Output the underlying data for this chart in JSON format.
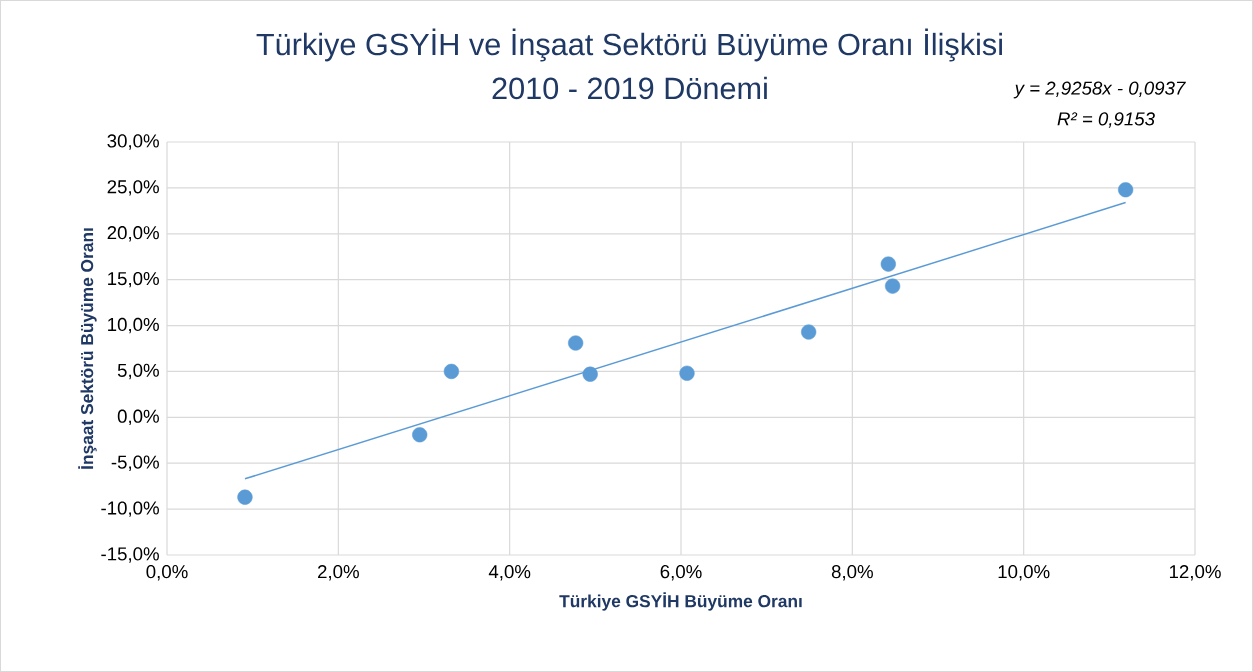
{
  "chart_data": {
    "type": "scatter",
    "title": "Türkiye GSYİH ve İnşaat Sektörü Büyüme Oranı İlişkisi",
    "subtitle": "2010 - 2019 Dönemi",
    "xlabel": "Türkiye GSYİH Büyüme Oranı",
    "ylabel": "İnşaat Sektörü Büyüme Oranı",
    "annotations": [
      "y = 2,9258x - 0,0937",
      "R² = 0,9153"
    ],
    "series": [
      {
        "color": "#5b9bd5",
        "marker": "circle",
        "x": [
          0.91,
          2.95,
          3.32,
          4.77,
          4.94,
          6.07,
          7.49,
          8.42,
          8.47,
          11.19
        ],
        "values": [
          -8.7,
          -1.9,
          5.0,
          8.1,
          4.7,
          4.8,
          9.3,
          16.7,
          14.3,
          24.8
        ]
      },
      {
        "type": "line",
        "color": "#5b9bd5",
        "marker": "none",
        "line_style": "solid",
        "x": [
          0.91,
          11.19
        ],
        "values": [
          -6.7,
          23.4
        ]
      }
    ],
    "xlim": [
      0,
      12
    ],
    "ylim": [
      -15,
      30
    ],
    "xticks": [
      {
        "value": 0,
        "label": "0,0%"
      },
      {
        "value": 2,
        "label": "2,0%"
      },
      {
        "value": 4,
        "label": "4,0%"
      },
      {
        "value": 6,
        "label": "6,0%"
      },
      {
        "value": 8,
        "label": "8,0%"
      },
      {
        "value": 10,
        "label": "10,0%"
      },
      {
        "value": 12,
        "label": "12,0%"
      }
    ],
    "yticks": [
      {
        "value": -15,
        "label": "-15,0%"
      },
      {
        "value": -10,
        "label": "-10,0%"
      },
      {
        "value": -5,
        "label": "-5,0%"
      },
      {
        "value": 0,
        "label": "0,0%"
      },
      {
        "value": 5,
        "label": "5,0%"
      },
      {
        "value": 10,
        "label": "10,0%"
      },
      {
        "value": 15,
        "label": "15,0%"
      },
      {
        "value": 20,
        "label": "20,0%"
      },
      {
        "value": 25,
        "label": "25,0%"
      },
      {
        "value": 30,
        "label": "30,0%"
      }
    ],
    "grid": true
  }
}
